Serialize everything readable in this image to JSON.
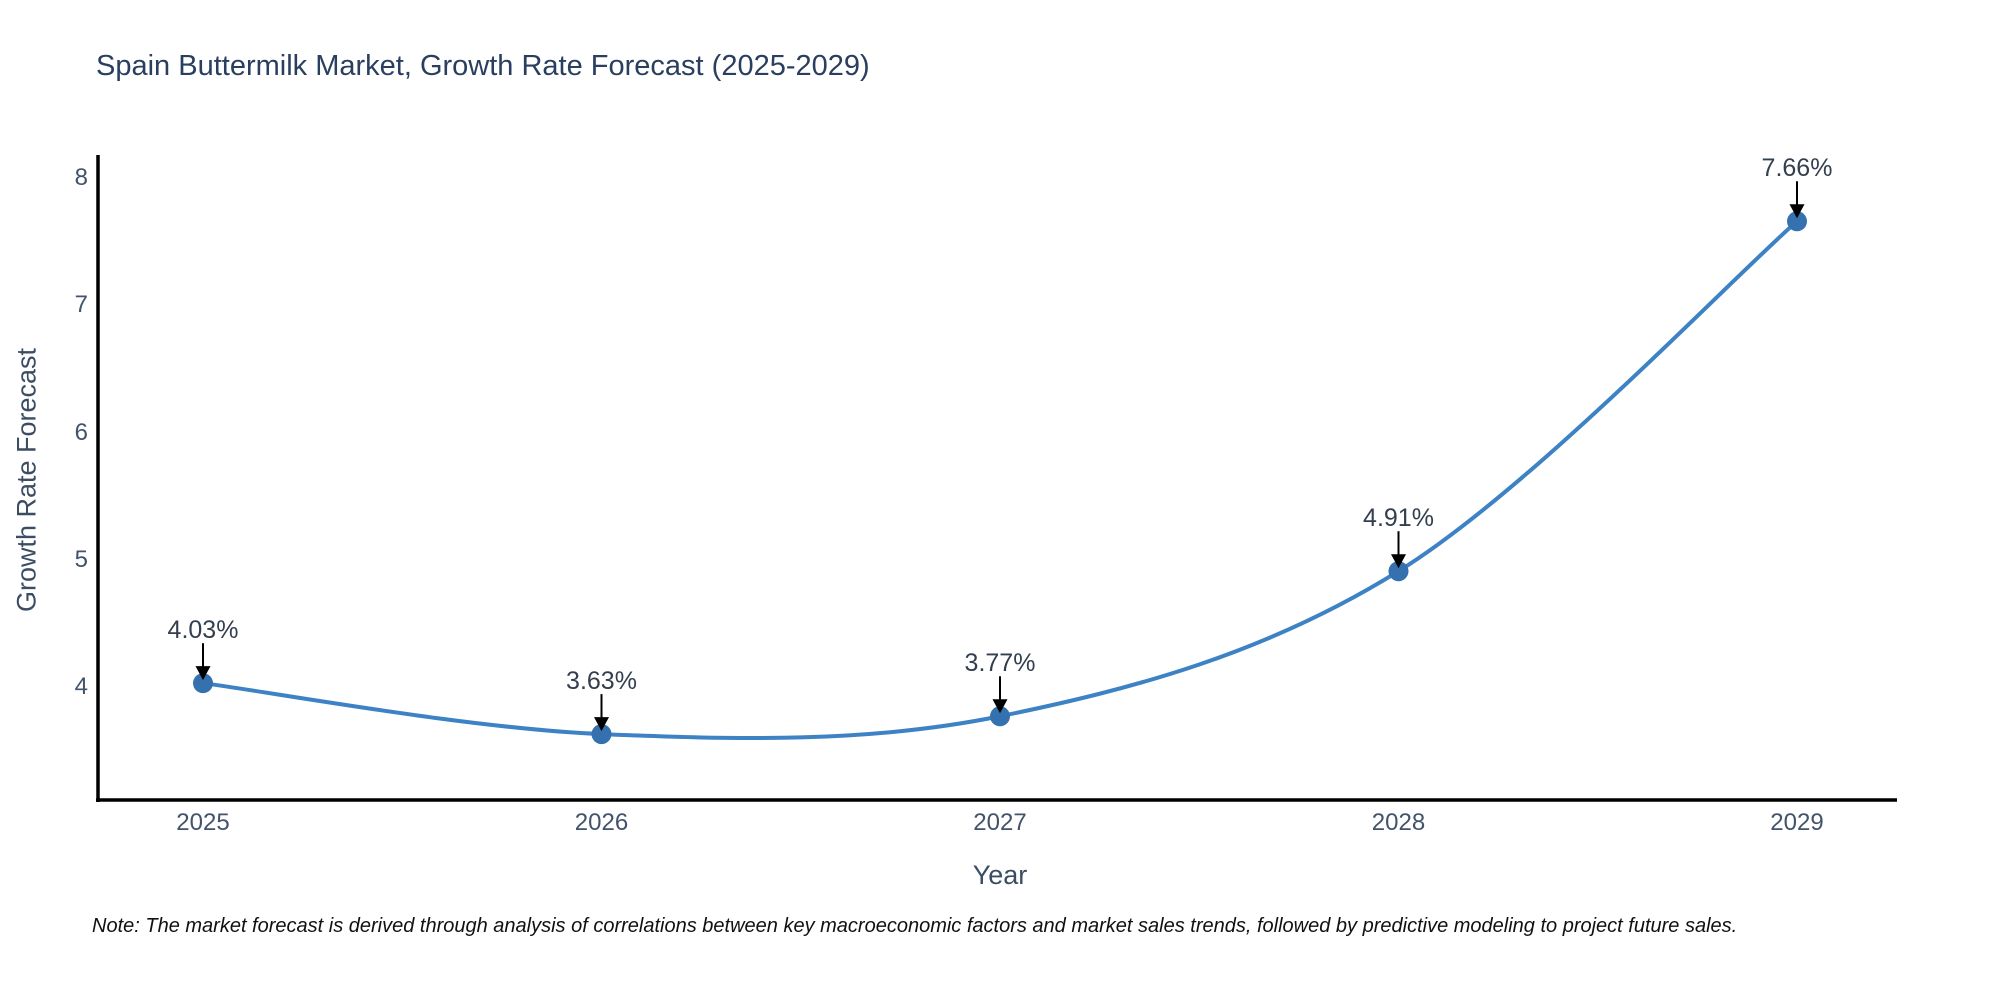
{
  "chart": {
    "note": "Note: The market forecast is derived through analysis of correlations between key macroeconomic factors and market sales trends, followed by predictive modeling to project future sales."
  },
  "chart_data": {
    "type": "line",
    "title": "Spain Buttermilk Market, Growth Rate Forecast (2025-2029)",
    "xlabel": "Year",
    "ylabel": "Growth Rate Forecast",
    "x": [
      2025,
      2026,
      2027,
      2028,
      2029
    ],
    "y": [
      4.03,
      3.63,
      3.77,
      4.91,
      7.66
    ],
    "point_labels": [
      "4.03%",
      "3.63%",
      "3.77%",
      "4.91%",
      "7.66%"
    ],
    "x_tick_labels": [
      "2025",
      "2026",
      "2027",
      "2028",
      "2029"
    ],
    "y_tick_labels": [
      "4",
      "5",
      "6",
      "7",
      "8"
    ],
    "y_tick_values": [
      4,
      5,
      6,
      7,
      8
    ],
    "ylim": [
      3.1,
      8.2
    ],
    "line_shape": "spline",
    "grid": false,
    "legend": "none",
    "colors": {
      "line": "#3d82c4",
      "marker": "#3471ae",
      "arrow": "#000000",
      "axis": "#000000",
      "title_text": "#2a3f5f",
      "tick_text": "#42536b"
    }
  }
}
